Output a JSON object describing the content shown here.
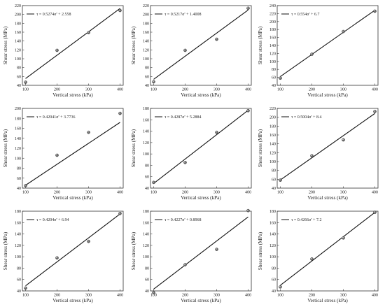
{
  "chart_data": [
    {
      "type": "scatter",
      "xlabel": "Vertical stress (kPa)",
      "ylabel": "Shear stress (MPa)",
      "legend": "τ = 0.5274σ' + 2.558",
      "ylim": [
        40,
        220
      ],
      "yticks": [
        40,
        60,
        80,
        100,
        120,
        140,
        160,
        180,
        200,
        220
      ],
      "xticks": [
        100,
        200,
        300,
        400
      ],
      "points": [
        [
          100,
          47
        ],
        [
          200,
          119
        ],
        [
          300,
          159
        ],
        [
          400,
          209
        ]
      ],
      "fit": {
        "slope": 0.5274,
        "intercept": 2.558
      }
    },
    {
      "type": "scatter",
      "xlabel": "Vertical stress (kPa)",
      "ylabel": "Shear stress (MPa)",
      "legend": "τ = 0.5217σ' + 1.4008",
      "ylim": [
        40,
        220
      ],
      "yticks": [
        40,
        60,
        80,
        100,
        120,
        140,
        160,
        180,
        200,
        220
      ],
      "xticks": [
        100,
        200,
        300,
        400
      ],
      "points": [
        [
          100,
          48
        ],
        [
          200,
          119
        ],
        [
          300,
          144
        ],
        [
          400,
          214
        ]
      ],
      "fit": {
        "slope": 0.5217,
        "intercept": 1.4008
      }
    },
    {
      "type": "scatter",
      "xlabel": "Vertical stress (kPa)",
      "ylabel": "Shear stress (MPa)",
      "legend": "τ = 0.554σ' + 6.7",
      "ylim": [
        40,
        240
      ],
      "yticks": [
        40,
        60,
        80,
        100,
        120,
        140,
        160,
        180,
        200,
        220,
        240
      ],
      "xticks": [
        100,
        200,
        300,
        400
      ],
      "points": [
        [
          100,
          58
        ],
        [
          200,
          118
        ],
        [
          300,
          175
        ],
        [
          400,
          226
        ]
      ],
      "fit": {
        "slope": 0.554,
        "intercept": 6.7
      }
    },
    {
      "type": "scatter",
      "xlabel": "Vertical stress (kPa)",
      "ylabel": "Shear stress (MPa)",
      "legend": "τ = 0.42041σ' + 3.7736",
      "ylim": [
        40,
        200
      ],
      "yticks": [
        40,
        60,
        80,
        100,
        120,
        140,
        160,
        180,
        200
      ],
      "xticks": [
        100,
        200,
        300,
        400
      ],
      "points": [
        [
          100,
          45
        ],
        [
          200,
          106
        ],
        [
          300,
          152
        ],
        [
          400,
          190
        ]
      ],
      "fit": {
        "slope": 0.42041,
        "intercept": 3.7736
      }
    },
    {
      "type": "scatter",
      "xlabel": "Vertical stress (kPa)",
      "ylabel": "Shear stress (MPa)",
      "legend": "τ = 0.4287σ' + 5.2884",
      "ylim": [
        40,
        180
      ],
      "yticks": [
        40,
        60,
        80,
        100,
        120,
        140,
        160,
        180
      ],
      "xticks": [
        100,
        200,
        300,
        400
      ],
      "points": [
        [
          100,
          50
        ],
        [
          200,
          85
        ],
        [
          300,
          138
        ],
        [
          400,
          176
        ]
      ],
      "fit": {
        "slope": 0.4287,
        "intercept": 5.2884
      }
    },
    {
      "type": "scatter",
      "xlabel": "Vertical stress (kPa)",
      "ylabel": "Shear stress (MPa)",
      "legend": "τ = 0.5004σ' + 8.4",
      "ylim": [
        40,
        220
      ],
      "yticks": [
        40,
        60,
        80,
        100,
        120,
        140,
        160,
        180,
        200,
        220
      ],
      "xticks": [
        100,
        200,
        300,
        400
      ],
      "points": [
        [
          100,
          58
        ],
        [
          200,
          113
        ],
        [
          300,
          149
        ],
        [
          400,
          213
        ]
      ],
      "fit": {
        "slope": 0.5004,
        "intercept": 8.4
      }
    },
    {
      "type": "scatter",
      "xlabel": "Vertical stress (kPa)",
      "ylabel": "Shear stress (MPa)",
      "legend": "τ = 0.4204σ' + 6.94",
      "ylim": [
        40,
        180
      ],
      "yticks": [
        40,
        60,
        80,
        100,
        120,
        140,
        160,
        180
      ],
      "xticks": [
        100,
        200,
        300,
        400
      ],
      "points": [
        [
          100,
          45
        ],
        [
          200,
          98
        ],
        [
          300,
          127
        ],
        [
          400,
          176
        ]
      ],
      "fit": {
        "slope": 0.4204,
        "intercept": 6.94
      }
    },
    {
      "type": "scatter",
      "xlabel": "Vertical stress (kPa)",
      "ylabel": "Shear stress (MPa)",
      "legend": "τ = 0.4227σ' + 0.8968",
      "ylim": [
        40,
        180
      ],
      "yticks": [
        40,
        60,
        80,
        100,
        120,
        140,
        160,
        180
      ],
      "xticks": [
        100,
        200,
        300,
        400
      ],
      "points": [
        [
          100,
          37
        ],
        [
          200,
          86
        ],
        [
          300,
          113
        ],
        [
          400,
          181
        ]
      ],
      "fit": {
        "slope": 0.4227,
        "intercept": 0.8968
      }
    },
    {
      "type": "scatter",
      "xlabel": "Vertical stress (kPa)",
      "ylabel": "Shear stress (MPa)",
      "legend": "τ = 0.4266σ' + 7.2",
      "ylim": [
        40,
        180
      ],
      "yticks": [
        40,
        60,
        80,
        100,
        120,
        140,
        160,
        180
      ],
      "xticks": [
        100,
        200,
        300,
        400
      ],
      "points": [
        [
          100,
          47
        ],
        [
          200,
          96
        ],
        [
          300,
          133
        ],
        [
          400,
          178
        ]
      ],
      "fit": {
        "slope": 0.4266,
        "intercept": 7.2
      }
    }
  ]
}
